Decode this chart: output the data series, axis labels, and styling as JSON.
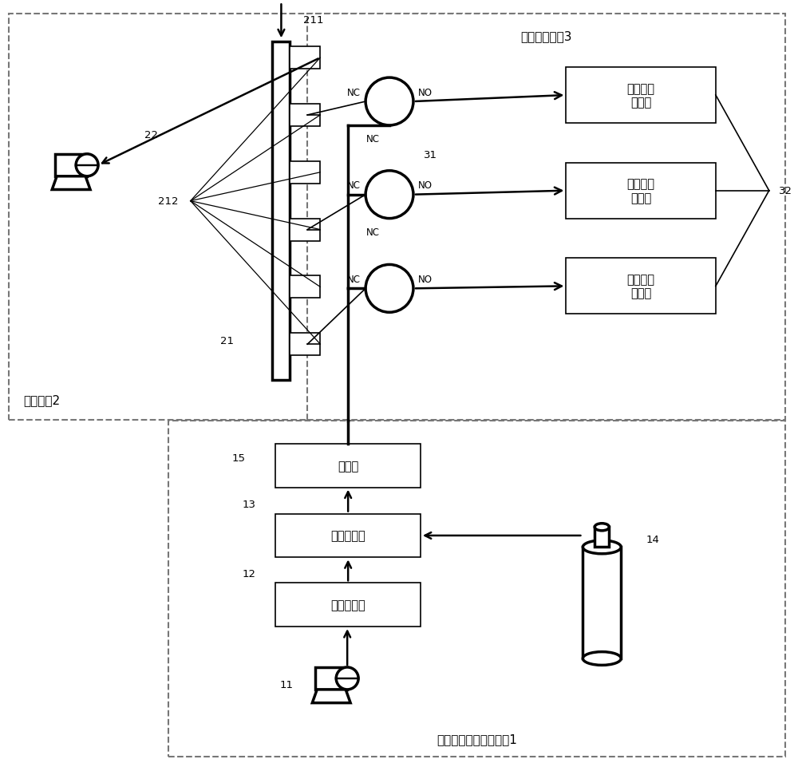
{
  "bg": "#ffffff",
  "lc": "#000000",
  "dc": "#777777",
  "sys1": "标定用标准气配气系统1",
  "sys2": "采样系统2",
  "sys3": "标定气路系统3",
  "hunhecang": "混合仓",
  "biaodinpeiqi": "标定配气仪",
  "lingqi": "零气发生器",
  "so2": "二氧化硫\n分析仪",
  "nox": "氮氧化物\n分析仪",
  "co": "一氧化碳\n分析仪",
  "n11": "11",
  "n12": "12",
  "n13": "13",
  "n14": "14",
  "n15": "15",
  "n21": "21",
  "n22": "22",
  "n31": "31",
  "n32": "32",
  "n211": "211",
  "n212": "212",
  "nc": "NC",
  "no": "NO"
}
